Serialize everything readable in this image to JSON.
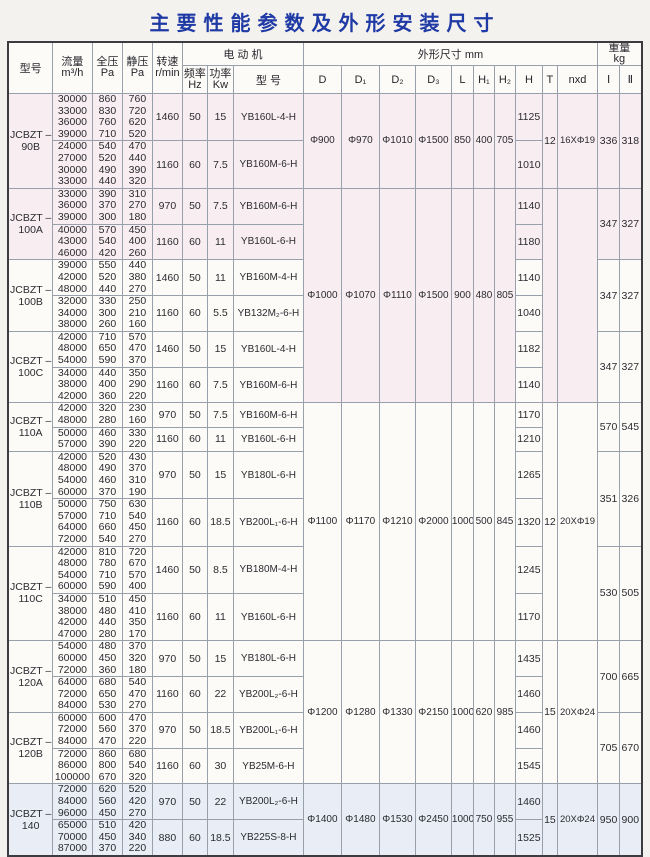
{
  "title": "主要性能参数及外形安装尺寸",
  "header": {
    "model": "型号",
    "flow": {
      "label": "流量",
      "unit": "m³/h"
    },
    "total_pressure": {
      "label": "全压",
      "unit": "Pa"
    },
    "static_pressure": {
      "label": "静压",
      "unit": "Pa"
    },
    "speed": {
      "label": "转速",
      "unit": "r/min"
    },
    "motor": {
      "label": "电 动 机",
      "freq_label": "频率",
      "freq_unit": "Hz",
      "power_label": "功率",
      "power_unit": "Kw",
      "model_label": "型 号"
    },
    "dims": {
      "label": "外形尺寸  mm",
      "cols": [
        "D",
        "D₁",
        "D₂",
        "D₃",
        "L",
        "H₁",
        "H₂",
        "H",
        "T",
        "nxd"
      ]
    },
    "weight": {
      "label": "重量",
      "unit": "kg",
      "cols": [
        "Ⅰ",
        "Ⅱ"
      ]
    }
  },
  "dim_groups": [
    {
      "dims": [
        "Φ900",
        "Φ970",
        "Φ1010",
        "Φ1500",
        "850",
        "400",
        "705"
      ],
      "t": "12",
      "nxd": "16XΦ19",
      "model_groups": [
        {
          "model": [
            "JCBZT –",
            "90B"
          ],
          "weight": [
            "336",
            "318"
          ],
          "variants": [
            {
              "flow": [
                "30000",
                "33000",
                "36000",
                "39000"
              ],
              "tp": [
                "860",
                "830",
                "760",
                "710"
              ],
              "sp": [
                "760",
                "720",
                "620",
                "520"
              ],
              "speed": "1460",
              "hz": "50",
              "kw": "15",
              "motor": "YB160L-4-H",
              "h": "1125"
            },
            {
              "flow": [
                "24000",
                "27000",
                "30000",
                "33000"
              ],
              "tp": [
                "540",
                "520",
                "490",
                "440"
              ],
              "sp": [
                "470",
                "440",
                "390",
                "320"
              ],
              "speed": "1160",
              "hz": "60",
              "kw": "7.5",
              "motor": "YB160M-6-H",
              "h": "1010"
            }
          ]
        }
      ]
    },
    {
      "dims": [
        "Φ1000",
        "Φ1070",
        "Φ1110",
        "Φ1500",
        "900",
        "480",
        "805"
      ],
      "t": "",
      "nxd": "",
      "model_groups": [
        {
          "model": [
            "JCBZT –",
            "100A"
          ],
          "weight": [
            "347",
            "327"
          ],
          "variants": [
            {
              "flow": [
                "33000",
                "36000",
                "39000"
              ],
              "tp": [
                "390",
                "370",
                "300"
              ],
              "sp": [
                "310",
                "270",
                "180"
              ],
              "speed": "970",
              "hz": "50",
              "kw": "7.5",
              "motor": "YB160M-6-H",
              "h": "1140"
            },
            {
              "flow": [
                "40000",
                "43000",
                "46000"
              ],
              "tp": [
                "570",
                "540",
                "420"
              ],
              "sp": [
                "450",
                "400",
                "260"
              ],
              "speed": "1160",
              "hz": "60",
              "kw": "11",
              "motor": "YB160L-6-H",
              "h": "1180"
            }
          ]
        },
        {
          "model": [
            "JCBZT –",
            "100B"
          ],
          "weight": [
            "347",
            "327"
          ],
          "variants": [
            {
              "flow": [
                "39000",
                "42000",
                "48000"
              ],
              "tp": [
                "550",
                "520",
                "440"
              ],
              "sp": [
                "440",
                "380",
                "270"
              ],
              "speed": "1460",
              "hz": "50",
              "kw": "11",
              "motor": "YB160M-4-H",
              "h": "1140"
            },
            {
              "flow": [
                "32000",
                "34000",
                "38000"
              ],
              "tp": [
                "330",
                "300",
                "260"
              ],
              "sp": [
                "250",
                "210",
                "160"
              ],
              "speed": "1160",
              "hz": "60",
              "kw": "5.5",
              "motor": "YB132M₂-6-H",
              "h": "1040"
            }
          ]
        },
        {
          "model": [
            "JCBZT –",
            "100C"
          ],
          "weight": [
            "347",
            "327"
          ],
          "variants": [
            {
              "flow": [
                "42000",
                "48000",
                "54000"
              ],
              "tp": [
                "710",
                "650",
                "590"
              ],
              "sp": [
                "570",
                "470",
                "370"
              ],
              "speed": "1460",
              "hz": "50",
              "kw": "15",
              "motor": "YB160L-4-H",
              "h": "1182"
            },
            {
              "flow": [
                "34000",
                "38000",
                "42000"
              ],
              "tp": [
                "440",
                "400",
                "360"
              ],
              "sp": [
                "350",
                "290",
                "220"
              ],
              "speed": "1160",
              "hz": "60",
              "kw": "7.5",
              "motor": "YB160M-6-H",
              "h": "1140"
            }
          ]
        }
      ]
    },
    {
      "dims": [
        "Φ1100",
        "Φ1170",
        "Φ1210",
        "Φ2000",
        "1000",
        "500",
        "845"
      ],
      "t": "12",
      "nxd": "20XΦ19",
      "model_groups": [
        {
          "model": [
            "JCBZT –",
            "110A"
          ],
          "weight": [
            "570",
            "545"
          ],
          "variants": [
            {
              "flow": [
                "42000",
                "48000"
              ],
              "tp": [
                "320",
                "280"
              ],
              "sp": [
                "230",
                "160"
              ],
              "speed": "970",
              "hz": "50",
              "kw": "7.5",
              "motor": "YB160M-6-H",
              "h": "1170"
            },
            {
              "flow": [
                "50000",
                "57000"
              ],
              "tp": [
                "460",
                "390"
              ],
              "sp": [
                "330",
                "220"
              ],
              "speed": "1160",
              "hz": "60",
              "kw": "11",
              "motor": "YB160L-6-H",
              "h": "1210"
            }
          ]
        },
        {
          "model": [
            "JCBZT –",
            "110B"
          ],
          "weight": [
            "351",
            "326"
          ],
          "variants": [
            {
              "flow": [
                "42000",
                "48000",
                "54000",
                "60000"
              ],
              "tp": [
                "520",
                "490",
                "460",
                "370"
              ],
              "sp": [
                "430",
                "370",
                "310",
                "190"
              ],
              "speed": "970",
              "hz": "50",
              "kw": "15",
              "motor": "YB180L-6-H",
              "h": "1265"
            },
            {
              "flow": [
                "50000",
                "57000",
                "64000",
                "72000"
              ],
              "tp": [
                "750",
                "710",
                "660",
                "540"
              ],
              "sp": [
                "630",
                "540",
                "450",
                "270"
              ],
              "speed": "1160",
              "hz": "60",
              "kw": "18.5",
              "motor": "YB200L₁-6-H",
              "h": "1320"
            }
          ]
        },
        {
          "model": [
            "JCBZT –",
            "110C"
          ],
          "weight": [
            "530",
            "505"
          ],
          "variants": [
            {
              "flow": [
                "42000",
                "48000",
                "54000",
                "60000"
              ],
              "tp": [
                "810",
                "780",
                "710",
                "590"
              ],
              "sp": [
                "720",
                "670",
                "570",
                "400"
              ],
              "speed": "1460",
              "hz": "50",
              "kw": "8.5",
              "motor": "YB180M-4-H",
              "h": "1245"
            },
            {
              "flow": [
                "34000",
                "38000",
                "42000",
                "47000"
              ],
              "tp": [
                "510",
                "480",
                "440",
                "280"
              ],
              "sp": [
                "450",
                "410",
                "350",
                "170"
              ],
              "speed": "1160",
              "hz": "60",
              "kw": "11",
              "motor": "YB160L-6-H",
              "h": "1170"
            }
          ]
        }
      ]
    },
    {
      "dims": [
        "Φ1200",
        "Φ1280",
        "Φ1330",
        "Φ2150",
        "1000",
        "620",
        "985"
      ],
      "t": "15",
      "nxd": "20XΦ24",
      "model_groups": [
        {
          "model": [
            "JCBZT –",
            "120A"
          ],
          "weight": [
            "700",
            "665"
          ],
          "variants": [
            {
              "flow": [
                "54000",
                "60000",
                "72000"
              ],
              "tp": [
                "480",
                "450",
                "360"
              ],
              "sp": [
                "370",
                "320",
                "180"
              ],
              "speed": "970",
              "hz": "50",
              "kw": "15",
              "motor": "YB180L-6-H",
              "h": "1435"
            },
            {
              "flow": [
                "64000",
                "72000",
                "84000"
              ],
              "tp": [
                "680",
                "650",
                "530"
              ],
              "sp": [
                "540",
                "470",
                "270"
              ],
              "speed": "1160",
              "hz": "60",
              "kw": "22",
              "motor": "YB200L₂-6-H",
              "h": "1460"
            }
          ]
        },
        {
          "model": [
            "JCBZT –",
            "120B"
          ],
          "weight": [
            "705",
            "670"
          ],
          "variants": [
            {
              "flow": [
                "60000",
                "72000",
                "84000"
              ],
              "tp": [
                "600",
                "560",
                "470"
              ],
              "sp": [
                "470",
                "370",
                "220"
              ],
              "speed": "970",
              "hz": "50",
              "kw": "18.5",
              "motor": "YB200L₁-6-H",
              "h": "1460"
            },
            {
              "flow": [
                "72000",
                "86000",
                "100000"
              ],
              "tp": [
                "860",
                "800",
                "670"
              ],
              "sp": [
                "680",
                "540",
                "320"
              ],
              "speed": "1160",
              "hz": "60",
              "kw": "30",
              "motor": "YB25M-6-H",
              "h": "1545"
            }
          ]
        }
      ]
    },
    {
      "dims": [
        "Φ1400",
        "Φ1480",
        "Φ1530",
        "Φ2450",
        "1000",
        "750",
        "955"
      ],
      "t": "15",
      "nxd": "20XΦ24",
      "model_groups": [
        {
          "model": [
            "JCBZT –",
            "140"
          ],
          "weight": [
            "950",
            "900"
          ],
          "variants": [
            {
              "flow": [
                "72000",
                "84000",
                "96000"
              ],
              "tp": [
                "620",
                "560",
                "450"
              ],
              "sp": [
                "520",
                "420",
                "270"
              ],
              "speed": "970",
              "hz": "50",
              "kw": "22",
              "motor": "YB200L₂-6-H",
              "h": "1460"
            },
            {
              "flow": [
                "65000",
                "70000",
                "87000"
              ],
              "tp": [
                "510",
                "450",
                "370"
              ],
              "sp": [
                "420",
                "340",
                "220"
              ],
              "speed": "880",
              "hz": "60",
              "kw": "18.5",
              "motor": "YB225S-8-H",
              "h": "1525"
            }
          ]
        }
      ]
    }
  ]
}
